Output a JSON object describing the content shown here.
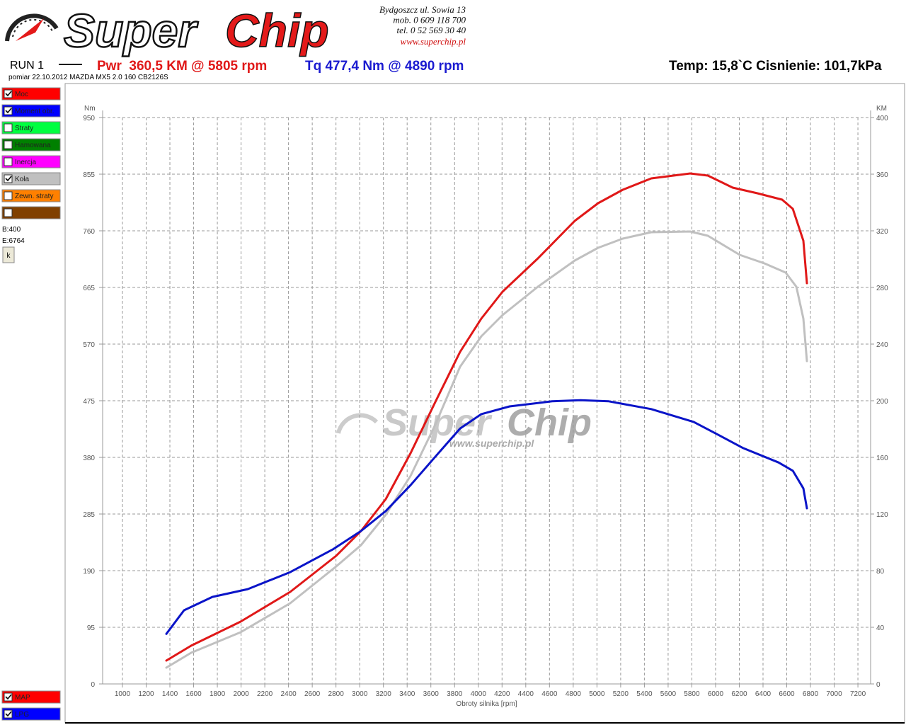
{
  "header": {
    "logo_part1": "Super",
    "logo_part2": "Chip",
    "address": [
      "Bydgoszcz ul. Sowia 13",
      "mob. 0 609 118 700",
      "tel. 0 52 569 30 40"
    ],
    "website": "www.superchip.pl"
  },
  "run": {
    "label": "RUN 1",
    "power": "Pwr  360,5 KM @ 5805 rpm",
    "torque": "Tq 477,4 Nm @ 4890 rpm",
    "conditions": "Temp: 15,8`C Cisnienie: 101,7kPa",
    "subtitle": "pomiar 22.10.2012 MAZDA MX5 2.0 160 CB2126S"
  },
  "panel": {
    "items": [
      {
        "label": "Moc",
        "color": "#ff0000",
        "checked": true
      },
      {
        "label": "Moment obr.",
        "color": "#0000ff",
        "checked": true
      },
      {
        "label": "Straty",
        "color": "#00ff40",
        "checked": false
      },
      {
        "label": "Hamowana",
        "color": "#008000",
        "checked": false
      },
      {
        "label": "Inercja",
        "color": "#ff00ff",
        "checked": false
      },
      {
        "label": "Koła",
        "color": "#c0c0c0",
        "checked": true
      },
      {
        "label": "Zewn. straty",
        "color": "#ff8000",
        "checked": false
      },
      {
        "label": null,
        "color": "#804000",
        "checked": false
      }
    ],
    "begin": "B:400",
    "end": "E:6764",
    "button": "k",
    "bottom_items": [
      {
        "label": "MAP",
        "color": "#ff0000",
        "checked": true
      },
      {
        "label": "LPG",
        "color": "#0000ff",
        "checked": true
      }
    ]
  },
  "chart_data": {
    "type": "line",
    "watermark": {
      "part1": "Super",
      "part2": "Chip",
      "url": "www.superchip.pl"
    },
    "ylabel": "Nm",
    "y2label": "KM",
    "xlabel": "Obroty silnika [rpm]",
    "grid": true,
    "xlim": [
      833,
      7307
    ],
    "xticks": [
      1000,
      1200,
      1400,
      1600,
      1800,
      2000,
      2200,
      2400,
      2600,
      2800,
      3000,
      3200,
      3400,
      3600,
      3800,
      4000,
      4200,
      4400,
      4600,
      4800,
      5000,
      5200,
      5400,
      5600,
      5800,
      6000,
      6200,
      6400,
      6600,
      6800,
      7000,
      7200
    ],
    "ylim": [
      0,
      950
    ],
    "yticks": [
      0,
      95,
      190,
      285,
      380,
      475,
      570,
      665,
      760,
      855,
      950
    ],
    "y2lim": [
      0,
      400
    ],
    "y2ticks": [
      0,
      40,
      80,
      120,
      160,
      200,
      240,
      280,
      320,
      360,
      400
    ],
    "series": [
      {
        "color": "#c0c0c0",
        "axis": "y2",
        "x": [
          1370,
          1579,
          1996,
          2414,
          2802,
          3011,
          3220,
          3429,
          3637,
          3846,
          4025,
          4204,
          4502,
          4813,
          5010,
          5218,
          5457,
          5786,
          5935,
          6204,
          6412,
          6591,
          6681,
          6740,
          6770
        ],
        "values": [
          11.5,
          22,
          36.5,
          57,
          83,
          98,
          119.5,
          147,
          183,
          224,
          245.5,
          260.5,
          280.5,
          299,
          308,
          314.5,
          319,
          319.5,
          316.5,
          303,
          297,
          290.5,
          280.5,
          258,
          228
        ]
      },
      {
        "color": "#e01818",
        "axis": "y2",
        "x": [
          1370,
          1579,
          1996,
          2414,
          2802,
          3011,
          3220,
          3429,
          3637,
          3846,
          4025,
          4204,
          4502,
          4813,
          5010,
          5218,
          5457,
          5786,
          5935,
          6144,
          6353,
          6561,
          6651,
          6740,
          6770
        ],
        "values": [
          16.5,
          27,
          44,
          65,
          90.5,
          108,
          130.5,
          163,
          199,
          234.5,
          258,
          277,
          300.5,
          327,
          339.5,
          349,
          357,
          360.5,
          359,
          350.5,
          346.5,
          342,
          335.5,
          313,
          283
        ]
      },
      {
        "color": "#0a14c8",
        "axis": "y",
        "x": [
          1370,
          1519,
          1758,
          2056,
          2414,
          2772,
          3011,
          3220,
          3429,
          3637,
          3846,
          4025,
          4264,
          4622,
          4861,
          5099,
          5457,
          5815,
          6054,
          6233,
          6531,
          6651,
          6740,
          6770
        ],
        "values": [
          84,
          123.5,
          146,
          159,
          187.5,
          225.5,
          256.5,
          290,
          333.5,
          381,
          428.5,
          452.5,
          465.5,
          474,
          476,
          474,
          461,
          439.5,
          414.5,
          395.5,
          371.5,
          357.5,
          328,
          294.5
        ]
      }
    ]
  }
}
